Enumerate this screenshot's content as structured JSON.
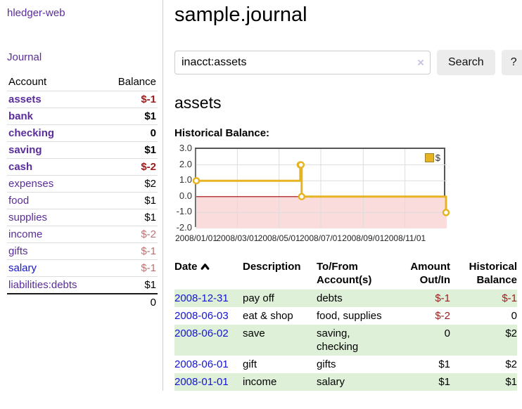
{
  "app": {
    "title": "hledger-web",
    "journal_link": "Journal"
  },
  "sidebar": {
    "headers": {
      "account": "Account",
      "balance": "Balance"
    },
    "accounts": [
      {
        "name": "assets",
        "balance": "$-1",
        "depth": 1,
        "bold": true,
        "muted": false,
        "blue": false
      },
      {
        "name": "bank",
        "balance": "$1",
        "depth": 2,
        "bold": true,
        "muted": false,
        "blue": false
      },
      {
        "name": "checking",
        "balance": "0",
        "depth": 3,
        "bold": true,
        "muted": false,
        "blue": false
      },
      {
        "name": "saving",
        "balance": "$1",
        "depth": 3,
        "bold": true,
        "muted": false,
        "blue": false
      },
      {
        "name": "cash",
        "balance": "$-2",
        "depth": 2,
        "bold": true,
        "muted": false,
        "blue": false
      },
      {
        "name": "expenses",
        "balance": "$2",
        "depth": 1,
        "bold": false,
        "muted": false,
        "blue": false
      },
      {
        "name": "food",
        "balance": "$1",
        "depth": 2,
        "bold": false,
        "muted": false,
        "blue": false
      },
      {
        "name": "supplies",
        "balance": "$1",
        "depth": 2,
        "bold": false,
        "muted": false,
        "blue": false
      },
      {
        "name": "income",
        "balance": "$-2",
        "depth": 1,
        "bold": false,
        "muted": true,
        "blue": false
      },
      {
        "name": "gifts",
        "balance": "$-1",
        "depth": 2,
        "bold": false,
        "muted": true,
        "blue": false
      },
      {
        "name": "salary",
        "balance": "$-1",
        "depth": 2,
        "bold": false,
        "muted": true,
        "blue": true
      },
      {
        "name": "liabilities:debts",
        "balance": "$1",
        "depth": 1,
        "bold": false,
        "muted": false,
        "blue": false
      }
    ],
    "total": "0"
  },
  "main": {
    "title": "sample.journal",
    "search": {
      "value": "inacct:assets",
      "clear_icon": "×",
      "search_button": "Search",
      "help_button": "?"
    },
    "account_heading": "assets",
    "chart_title": "Historical Balance:"
  },
  "chart_data": {
    "type": "line",
    "step": true,
    "title": "Historical Balance",
    "series": [
      {
        "name": "$",
        "points": [
          [
            "2008-01-01",
            1
          ],
          [
            "2008-06-01",
            2
          ],
          [
            "2008-06-02",
            2
          ],
          [
            "2008-06-03",
            0
          ],
          [
            "2008-12-31",
            -1
          ]
        ]
      }
    ],
    "x_range": [
      "2008-01-01",
      "2008-12-31"
    ],
    "xticks": [
      "2008/01/01",
      "2008/03/01",
      "2008/05/01",
      "2008/07/01",
      "2008/09/01",
      "2008/11/01"
    ],
    "yticks": [
      3.0,
      2.0,
      1.0,
      0.0,
      -1.0,
      -2.0
    ],
    "ylim": [
      -2,
      3
    ],
    "grid": true,
    "legend_position": "top-right",
    "legend": {
      "label": "$",
      "color": "#E6B422"
    },
    "line_color": "#E6B422",
    "marker": "open-circle",
    "negative_region_color": "#fbdcdc",
    "zero_line_color": "#a40000"
  },
  "register": {
    "headers": [
      "Date",
      "Description",
      "To/From Account(s)",
      "Amount Out/In",
      "Historical Balance"
    ],
    "sort_column": "Date",
    "sort_direction": "asc",
    "rows": [
      {
        "date": "2008-12-31",
        "description": "pay off",
        "accounts": "debts",
        "amount": "$-1",
        "balance": "$-1"
      },
      {
        "date": "2008-06-03",
        "description": "eat & shop",
        "accounts": "food, supplies",
        "amount": "$-2",
        "balance": "0"
      },
      {
        "date": "2008-06-02",
        "description": "save",
        "accounts": "saving, checking",
        "amount": "0",
        "balance": "$2"
      },
      {
        "date": "2008-06-01",
        "description": "gift",
        "accounts": "gifts",
        "amount": "$1",
        "balance": "$2"
      },
      {
        "date": "2008-01-01",
        "description": "income",
        "accounts": "salary",
        "amount": "$1",
        "balance": "$1"
      }
    ]
  }
}
